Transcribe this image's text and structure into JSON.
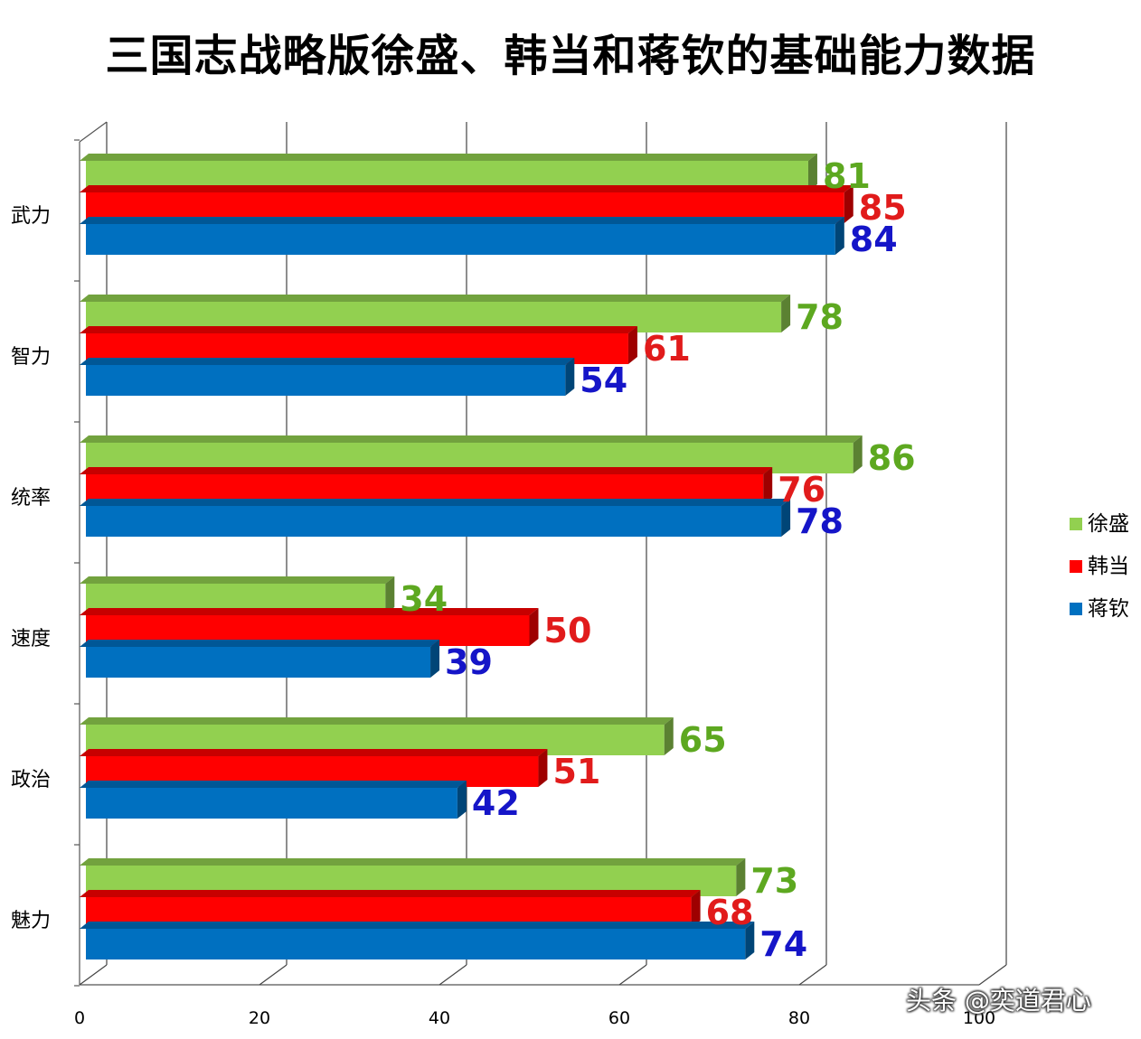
{
  "chart_data": {
    "type": "bar",
    "orientation": "horizontal",
    "title": "三国志战略版徐盛、韩当和蒋钦的基础能力数据",
    "categories": [
      "武力",
      "智力",
      "统率",
      "速度",
      "政治",
      "魅力"
    ],
    "series": [
      {
        "name": "徐盛",
        "color": "#92D050",
        "label_color": "#5DA820",
        "values": [
          81,
          78,
          86,
          34,
          65,
          73
        ]
      },
      {
        "name": "韩当",
        "color": "#FF0000",
        "label_color": "#E11B1B",
        "values": [
          85,
          61,
          76,
          50,
          51,
          68
        ]
      },
      {
        "name": "蒋钦",
        "color": "#0070C0",
        "label_color": "#1515C8",
        "values": [
          84,
          54,
          78,
          39,
          42,
          74
        ]
      }
    ],
    "x_ticks": [
      "0",
      "20",
      "40",
      "60",
      "80",
      "100"
    ],
    "xlim": [
      0,
      100
    ],
    "grid": true,
    "legend_position": "right",
    "three_d": true
  },
  "watermark": "头条 @奕道君心"
}
